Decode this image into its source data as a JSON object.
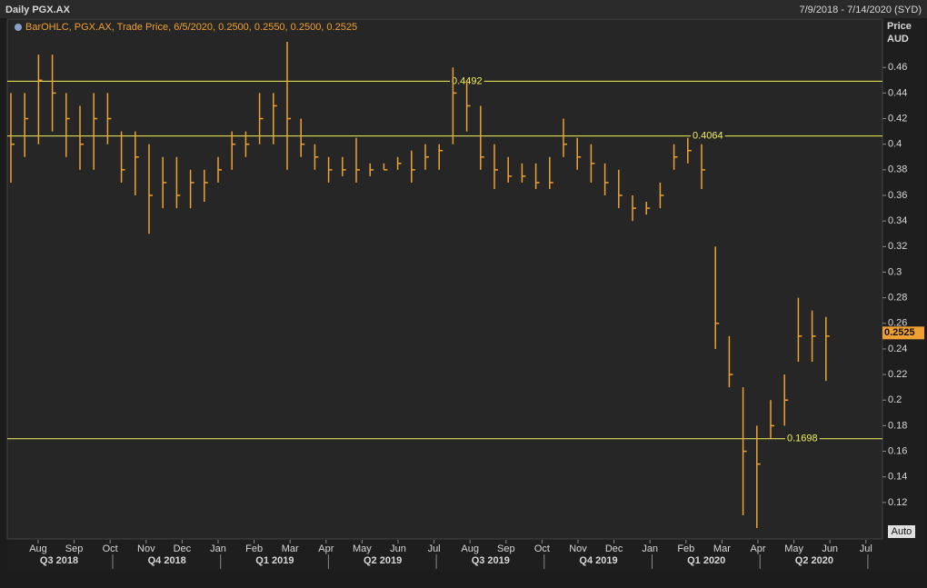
{
  "header": {
    "title": "Daily PGX.AX",
    "range": "7/9/2018 - 7/14/2020 (SYD)"
  },
  "chart_data": {
    "type": "ohlc",
    "legend": "BarOHLC, PGX.AX, Trade Price, 6/5/2020, 0.2500, 0.2550, 0.2500, 0.2525",
    "y_label": "Price",
    "y_unit": "AUD",
    "color": "#f0a030",
    "line_color": "#f2f25a",
    "last_price": 0.2525,
    "auto_button": "Auto",
    "ylim": [
      0.0915,
      0.4978
    ],
    "yticks": [
      0.12,
      0.14,
      0.16,
      0.18,
      0.2,
      0.22,
      0.24,
      0.26,
      0.28,
      0.3,
      0.32,
      0.34,
      0.36,
      0.38,
      0.4,
      0.42,
      0.44,
      0.46
    ],
    "hlines": [
      0.4492,
      0.4064,
      0.1698
    ],
    "months": [
      "Aug",
      "Sep",
      "Oct",
      "Nov",
      "Dec",
      "Jan",
      "Feb",
      "Mar",
      "Apr",
      "May",
      "Jun",
      "Jul",
      "Aug",
      "Sep",
      "Oct",
      "Nov",
      "Dec",
      "Jan",
      "Feb",
      "Mar",
      "Apr",
      "May",
      "Jun",
      "Jul"
    ],
    "quarters": [
      "Q3 2018",
      "Q4 2018",
      "Q1 2019",
      "Q2 2019",
      "Q3 2019",
      "Q4 2019",
      "Q1 2020",
      "Q2 2020"
    ],
    "high": [
      0.44,
      0.44,
      0.47,
      0.47,
      0.44,
      0.43,
      0.44,
      0.44,
      0.41,
      0.41,
      0.4,
      0.39,
      0.39,
      0.38,
      0.38,
      0.39,
      0.41,
      0.41,
      0.44,
      0.44,
      0.48,
      0.42,
      0.4,
      0.39,
      0.39,
      0.405,
      0.385,
      0.385,
      0.39,
      0.395,
      0.4,
      0.4,
      0.46,
      0.45,
      0.43,
      0.4,
      0.39,
      0.385,
      0.385,
      0.39,
      0.42,
      0.405,
      0.4,
      0.385,
      0.38,
      0.36,
      0.355,
      0.37,
      0.4,
      0.405,
      0.4,
      0.32,
      0.25,
      0.21,
      0.18,
      0.2,
      0.22,
      0.28,
      0.27,
      0.265
    ],
    "low": [
      0.37,
      0.39,
      0.4,
      0.41,
      0.39,
      0.38,
      0.38,
      0.4,
      0.37,
      0.36,
      0.33,
      0.35,
      0.35,
      0.35,
      0.355,
      0.37,
      0.38,
      0.39,
      0.4,
      0.4,
      0.38,
      0.39,
      0.38,
      0.37,
      0.375,
      0.37,
      0.375,
      0.38,
      0.38,
      0.37,
      0.38,
      0.38,
      0.4,
      0.41,
      0.38,
      0.365,
      0.37,
      0.37,
      0.365,
      0.365,
      0.39,
      0.38,
      0.37,
      0.36,
      0.35,
      0.34,
      0.345,
      0.35,
      0.38,
      0.385,
      0.365,
      0.24,
      0.21,
      0.11,
      0.1,
      0.17,
      0.18,
      0.23,
      0.23,
      0.215
    ],
    "close": [
      0.4,
      0.42,
      0.45,
      0.44,
      0.42,
      0.4,
      0.42,
      0.42,
      0.38,
      0.39,
      0.36,
      0.37,
      0.36,
      0.37,
      0.37,
      0.38,
      0.4,
      0.4,
      0.42,
      0.43,
      0.42,
      0.4,
      0.39,
      0.38,
      0.38,
      0.38,
      0.38,
      0.38,
      0.385,
      0.38,
      0.39,
      0.395,
      0.44,
      0.43,
      0.39,
      0.38,
      0.375,
      0.375,
      0.37,
      0.37,
      0.4,
      0.39,
      0.385,
      0.37,
      0.36,
      0.35,
      0.35,
      0.36,
      0.39,
      0.395,
      0.38,
      0.26,
      0.22,
      0.16,
      0.15,
      0.18,
      0.2,
      0.25,
      0.25,
      0.25
    ]
  }
}
